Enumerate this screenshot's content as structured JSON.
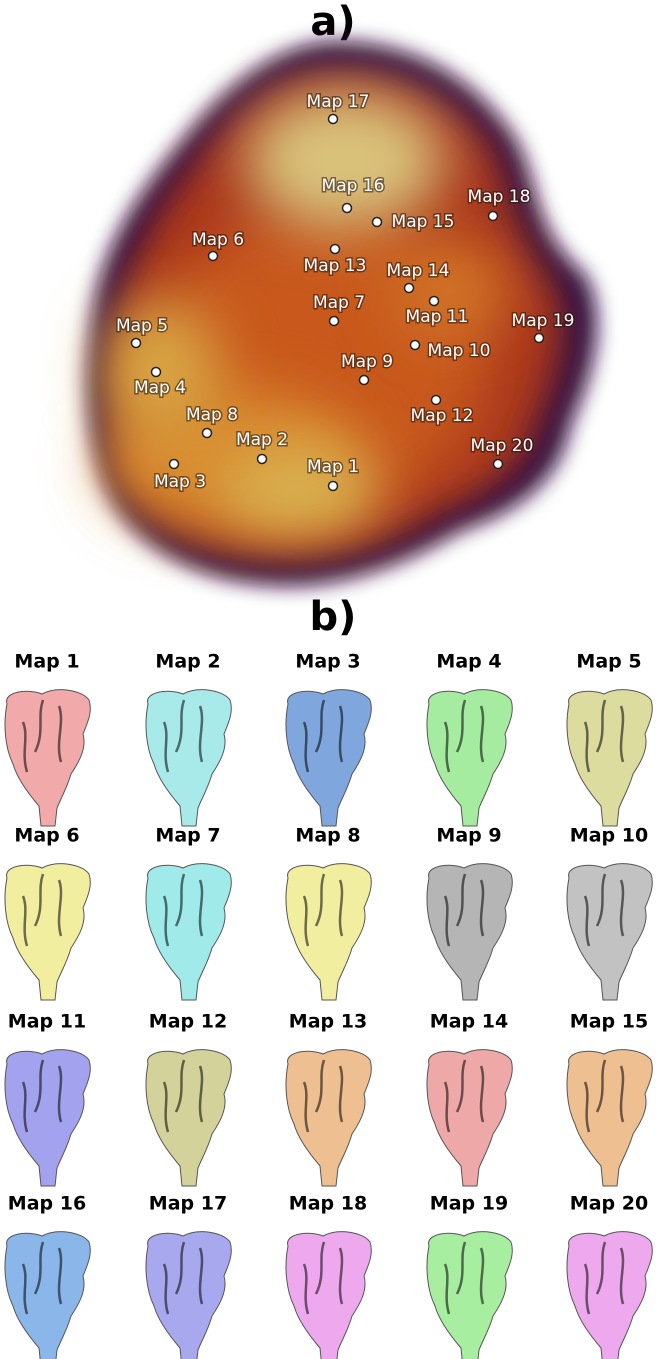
{
  "panel_a": {
    "label": "a)",
    "points": [
      {
        "label": "Map 1"
      },
      {
        "label": "Map 2"
      },
      {
        "label": "Map 3"
      },
      {
        "label": "Map 4"
      },
      {
        "label": "Map 5"
      },
      {
        "label": "Map 6"
      },
      {
        "label": "Map 7"
      },
      {
        "label": "Map 8"
      },
      {
        "label": "Map 9"
      },
      {
        "label": "Map 10"
      },
      {
        "label": "Map 11"
      },
      {
        "label": "Map 12"
      },
      {
        "label": "Map 13"
      },
      {
        "label": "Map 14"
      },
      {
        "label": "Map 15"
      },
      {
        "label": "Map 16"
      },
      {
        "label": "Map 17"
      },
      {
        "label": "Map 18"
      },
      {
        "label": "Map 19"
      },
      {
        "label": "Map 20"
      }
    ]
  },
  "panel_b": {
    "label": "b)",
    "maps": [
      {
        "label": "Map 1",
        "color": "#f2a9a9"
      },
      {
        "label": "Map 2",
        "color": "#a8eaea"
      },
      {
        "label": "Map 3",
        "color": "#7fa7dd"
      },
      {
        "label": "Map 4",
        "color": "#a6eca0"
      },
      {
        "label": "Map 5",
        "color": "#dcdc9e"
      },
      {
        "label": "Map 6",
        "color": "#f2ee9f"
      },
      {
        "label": "Map 7",
        "color": "#a0eaea"
      },
      {
        "label": "Map 8",
        "color": "#f2ee9f"
      },
      {
        "label": "Map 9",
        "color": "#b5b5b5"
      },
      {
        "label": "Map 10",
        "color": "#c2c2c2"
      },
      {
        "label": "Map 11",
        "color": "#a2a2ee"
      },
      {
        "label": "Map 12",
        "color": "#d2d29a"
      },
      {
        "label": "Map 13",
        "color": "#eebf90"
      },
      {
        "label": "Map 14",
        "color": "#eea8a8"
      },
      {
        "label": "Map 15",
        "color": "#eebf90"
      },
      {
        "label": "Map 16",
        "color": "#8ab6ea"
      },
      {
        "label": "Map 17",
        "color": "#a8a8ee"
      },
      {
        "label": "Map 18",
        "color": "#eea8ee"
      },
      {
        "label": "Map 19",
        "color": "#a8eea0"
      },
      {
        "label": "Map 20",
        "color": "#eea8ee"
      }
    ]
  }
}
